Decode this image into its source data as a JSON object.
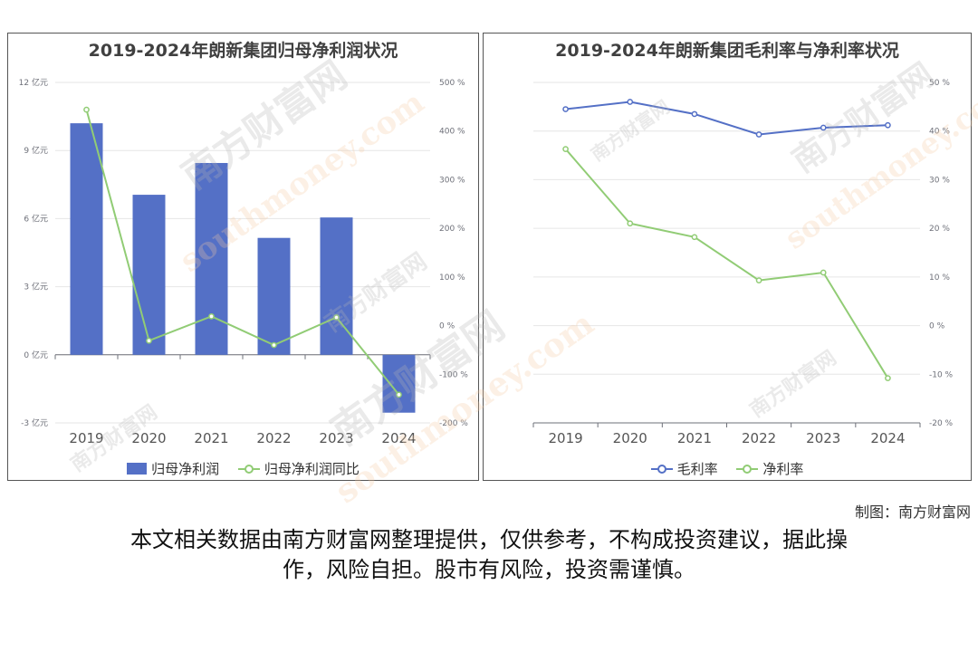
{
  "credit": "制图：南方财富网",
  "disclaimer_line1": "本文相关数据由南方财富网整理提供，仅供参考，不构成投资建议，据此操",
  "disclaimer_line2": "作，风险自担。股市有风险，投资需谨慎。",
  "watermark": {
    "text_cn": "南方财富网",
    "text_en": "southmoney.com"
  },
  "colors": {
    "bar": "#5470c6",
    "line_green": "#91cc75",
    "line_blue": "#5470c6"
  },
  "chart_data": [
    {
      "type": "bar",
      "title": "2019-2024年朗新集团归母净利润状况",
      "categories": [
        "2019",
        "2020",
        "2021",
        "2022",
        "2023",
        "2024"
      ],
      "series": [
        {
          "name": "归母净利润",
          "type": "bar",
          "axis": "left",
          "values": [
            10.2,
            7.05,
            8.45,
            5.15,
            6.05,
            -2.55
          ]
        },
        {
          "name": "归母净利润同比",
          "type": "line",
          "axis": "right",
          "values": [
            444,
            -31,
            19,
            -40,
            17,
            -142
          ]
        }
      ],
      "y_left": {
        "min": -3,
        "max": 12,
        "ticks": [
          -3,
          0,
          3,
          6,
          9,
          12
        ],
        "tick_labels": [
          "-3 亿元",
          "0 亿元",
          "3 亿元",
          "6 亿元",
          "9 亿元",
          "12 亿元"
        ]
      },
      "y_right": {
        "min": -200,
        "max": 500,
        "ticks": [
          -200,
          -100,
          0,
          100,
          200,
          300,
          400,
          500
        ],
        "tick_labels": [
          "-200 %",
          "-100 %",
          "0 %",
          "100 %",
          "200 %",
          "300 %",
          "400 %",
          "500 %"
        ]
      },
      "grid": true,
      "legend": "bottom"
    },
    {
      "type": "line",
      "title": "2019-2024年朗新集团毛利率与净利率状况",
      "categories": [
        "2019",
        "2020",
        "2021",
        "2022",
        "2023",
        "2024"
      ],
      "series": [
        {
          "name": "毛利率",
          "values": [
            44.5,
            46,
            43.5,
            39.3,
            40.7,
            41.2
          ]
        },
        {
          "name": "净利率",
          "values": [
            36.3,
            21,
            18.2,
            9.3,
            10.9,
            -10.8
          ]
        }
      ],
      "y": {
        "min": -20,
        "max": 50,
        "ticks": [
          -20,
          -10,
          0,
          10,
          20,
          30,
          40,
          50
        ],
        "tick_labels": [
          "-20 %",
          "-10 %",
          "0 %",
          "10 %",
          "20 %",
          "30 %",
          "40 %",
          "50 %"
        ]
      },
      "grid": true,
      "legend": "bottom"
    }
  ]
}
